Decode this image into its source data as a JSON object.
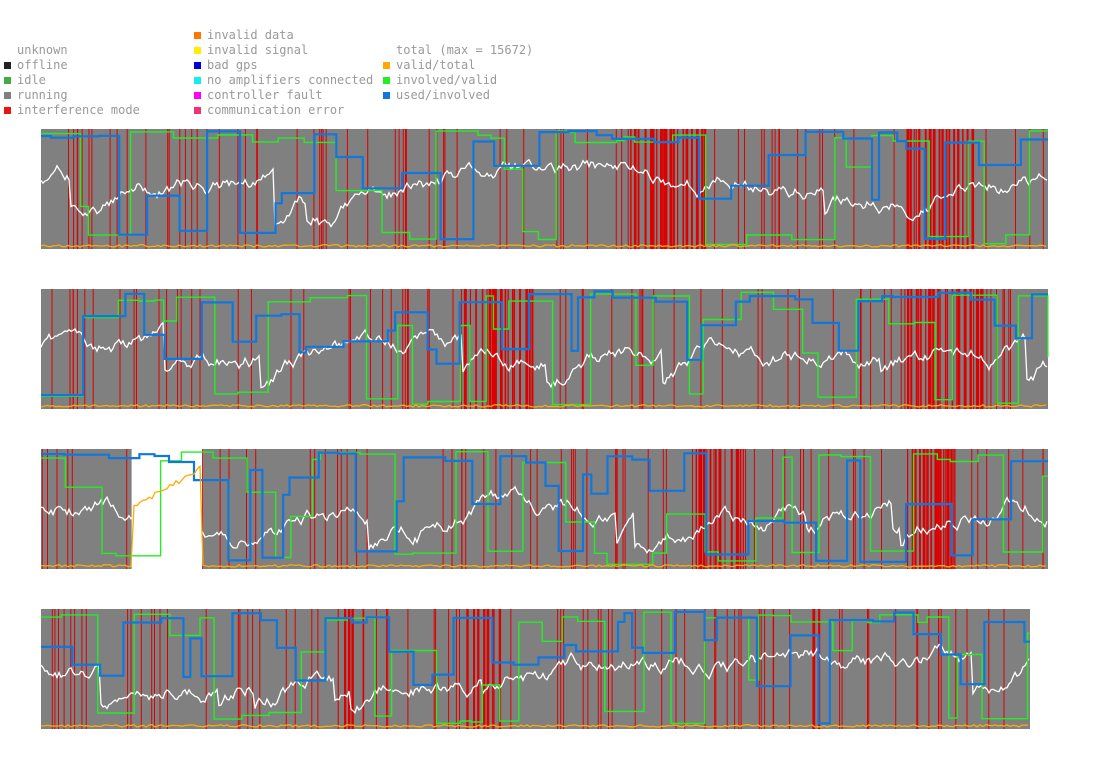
{
  "legend": {
    "status": [
      {
        "label": "unknown",
        "color": ""
      },
      {
        "label": "offline",
        "color": "#222222"
      },
      {
        "label": "idle",
        "color": "#44aa44"
      },
      {
        "label": "running",
        "color": "#808080"
      },
      {
        "label": "interference mode",
        "color": "#ee1111"
      }
    ],
    "errors": [
      {
        "label": "invalid data",
        "color": "#ff7700"
      },
      {
        "label": "invalid signal",
        "color": "#ffee00"
      },
      {
        "label": "bad gps",
        "color": "#0000dd"
      },
      {
        "label": "no amplifiers connected",
        "color": "#11eeee"
      },
      {
        "label": "controller fault",
        "color": "#ff00ff"
      },
      {
        "label": "communication error",
        "color": "#ee3377"
      }
    ],
    "ratios": [
      {
        "label": "total (max = 15672)",
        "color": ""
      },
      {
        "label": "valid/total",
        "color": "#ffaa00"
      },
      {
        "label": "involved/valid",
        "color": "#22ee22"
      },
      {
        "label": "used/involved",
        "color": "#1177dd"
      }
    ]
  },
  "colors": {
    "running": "#808080",
    "interference": "#dd0000",
    "total": "#ffffff",
    "valid_total": "#ffaa00",
    "involved_valid": "#22ee22",
    "used_involved": "#1177dd"
  },
  "chart_data": {
    "type": "line",
    "max_total": 15672,
    "ylim": [
      0,
      1
    ],
    "strips": [
      {
        "name": "row-1",
        "seed": 11,
        "coverage": 1.0,
        "gap": null,
        "interference_spans": [
          [
            0.585,
            0.66
          ],
          [
            0.86,
            0.925
          ]
        ]
      },
      {
        "name": "row-2",
        "seed": 29,
        "coverage": 1.0,
        "gap": null,
        "interference_spans": [
          [
            0.42,
            0.49
          ],
          [
            0.86,
            0.935
          ]
        ]
      },
      {
        "name": "row-3",
        "seed": 47,
        "coverage": 1.0,
        "gap": [
          0.09,
          0.16
        ],
        "interference_spans": [
          [
            0.65,
            0.7
          ],
          [
            0.86,
            0.91
          ]
        ]
      },
      {
        "name": "row-4",
        "seed": 83,
        "coverage": 0.982,
        "gap": null,
        "interference_spans": [
          [
            0.3,
            0.315
          ],
          [
            0.43,
            0.465
          ],
          [
            0.78,
            0.79
          ]
        ]
      }
    ]
  }
}
